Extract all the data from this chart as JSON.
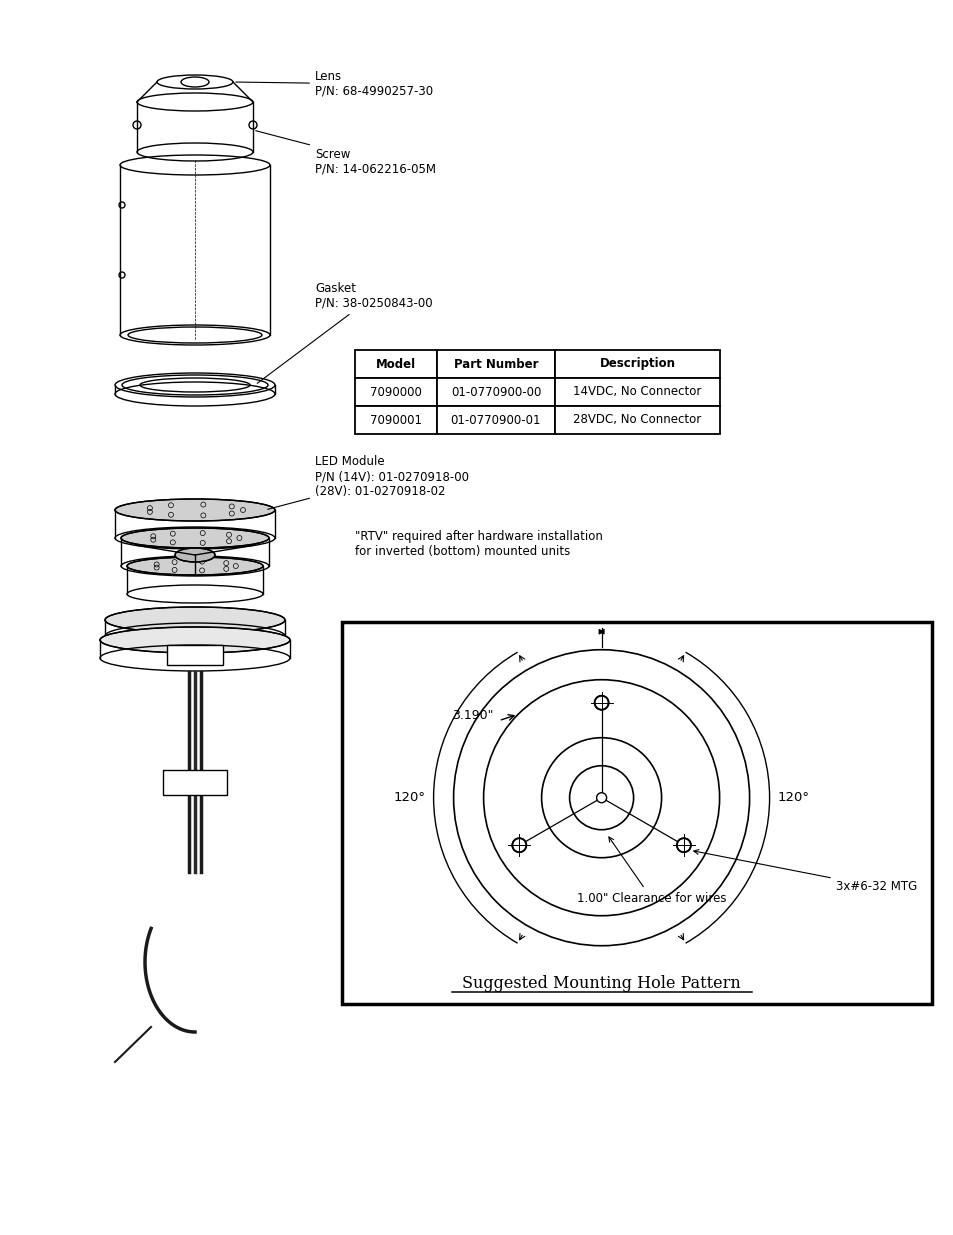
{
  "bg_color": "#ffffff",
  "title": "Suggested Mounting Hole Pattern",
  "table_headers": [
    "Model",
    "Part Number",
    "Description"
  ],
  "table_rows": [
    [
      "7090000",
      "01-0770900-00",
      "14VDC, No Connector"
    ],
    [
      "7090001",
      "01-0770900-01",
      "28VDC, No Connector"
    ]
  ],
  "labels": {
    "lens": "Lens\nP/N: 68-4990257-30",
    "screw": "Screw\nP/N: 14-062216-05M",
    "gasket": "Gasket\nP/N: 38-0250843-00",
    "led": "LED Module\nP/N (14V): 01-0270918-00\n(28V): 01-0270918-02",
    "rtv": "\"RTV\" required after hardware installation\nfor inverted (bottom) mounted units",
    "dim1": "3.190\"",
    "angle_right": "120°",
    "angle_left": "120°",
    "mtg": "3x#6-32 MTG",
    "clearance": "1.00\" Clearance for wires"
  },
  "line_color": "#000000"
}
